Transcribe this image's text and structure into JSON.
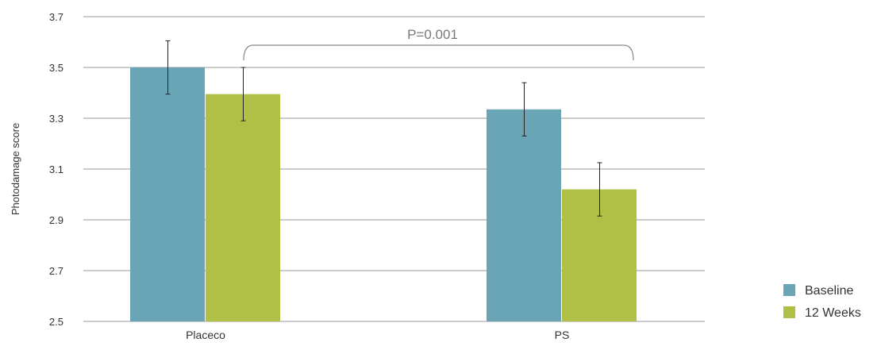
{
  "chart_data": {
    "type": "bar",
    "ylabel": "Photodamage score",
    "ylim": [
      2.5,
      3.7
    ],
    "yticks": [
      "3.7",
      "3.5",
      "3.3",
      "3.1",
      "2.9",
      "2.7",
      "2.5"
    ],
    "categories": [
      "Placeco",
      "PS"
    ],
    "series": [
      {
        "name": "Baseline",
        "color": "#6aa5b6",
        "values": [
          3.5,
          3.335
        ],
        "errors": [
          0.105,
          0.105
        ]
      },
      {
        "name": "12 Weeks",
        "color": "#b0c046",
        "values": [
          3.395,
          3.02
        ],
        "errors": [
          0.105,
          0.105
        ]
      }
    ],
    "annotation": {
      "text": "P=0.001"
    },
    "legend": {
      "position": "bottom-right"
    },
    "grid": true
  }
}
